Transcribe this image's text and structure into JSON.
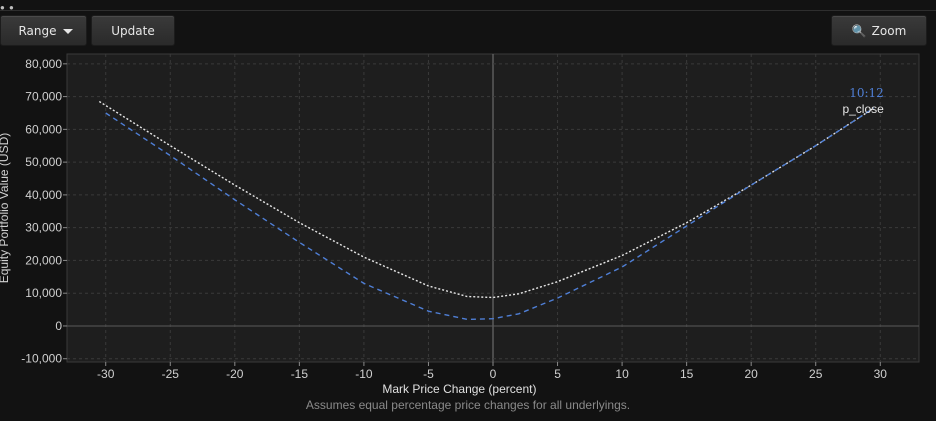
{
  "toolbar": {
    "range_label": "Range",
    "update_label": "Update",
    "zoom_label": "Zoom"
  },
  "icons": {
    "range_caret": "caret-down-icon",
    "zoom_icon": "magnifier-icon",
    "corner": "window-dots-icon"
  },
  "colors": {
    "background": "#121212",
    "plot_background": "#1e1e1e",
    "series_p_close": "#e8e8e8",
    "series_time": "#4f7fd6"
  },
  "chart_data": {
    "type": "line",
    "title": "",
    "xlabel": "Mark Price Change (percent)",
    "ylabel": "Equity Portfolio Value (USD)",
    "xlim": [
      -33,
      33
    ],
    "ylim": [
      -11000,
      83000
    ],
    "grid": true,
    "x_ticks": [
      -30,
      -25,
      -20,
      -15,
      -10,
      -5,
      0,
      5,
      10,
      15,
      20,
      25,
      30
    ],
    "x_tick_labels": [
      "-30",
      "-25",
      "-20",
      "-15",
      "-10",
      "-5",
      "0",
      "5",
      "10",
      "15",
      "20",
      "25",
      "30"
    ],
    "y_ticks": [
      -10000,
      0,
      10000,
      20000,
      30000,
      40000,
      50000,
      60000,
      70000,
      80000
    ],
    "y_tick_labels": [
      "-10,000",
      "0",
      "10,000",
      "20,000",
      "30,000",
      "40,000",
      "50,000",
      "60,000",
      "70,000",
      "80,000"
    ],
    "series": [
      {
        "name": "p_close",
        "color": "#e8e8e8",
        "style": "dotted",
        "x": [
          -30.5,
          -25,
          -20,
          -15,
          -10,
          -5,
          -2,
          0,
          2,
          5,
          10,
          15,
          20,
          25,
          29.5
        ],
        "y": [
          68500,
          55000,
          43000,
          31500,
          21000,
          12200,
          9000,
          8700,
          9800,
          13500,
          21500,
          31500,
          43000,
          55000,
          66500
        ]
      },
      {
        "name": "10:12",
        "color": "#4f7fd6",
        "style": "dashed",
        "x": [
          -30,
          -25,
          -20,
          -15,
          -10,
          -5,
          -2,
          0,
          2,
          5,
          10,
          15,
          20,
          25,
          29.5
        ],
        "y": [
          65000,
          52000,
          38500,
          25500,
          13000,
          4500,
          2000,
          2200,
          3700,
          8500,
          18000,
          30500,
          43000,
          55000,
          66500
        ]
      }
    ],
    "footnote": "Assumes equal percentage price changes for all underlyings."
  }
}
